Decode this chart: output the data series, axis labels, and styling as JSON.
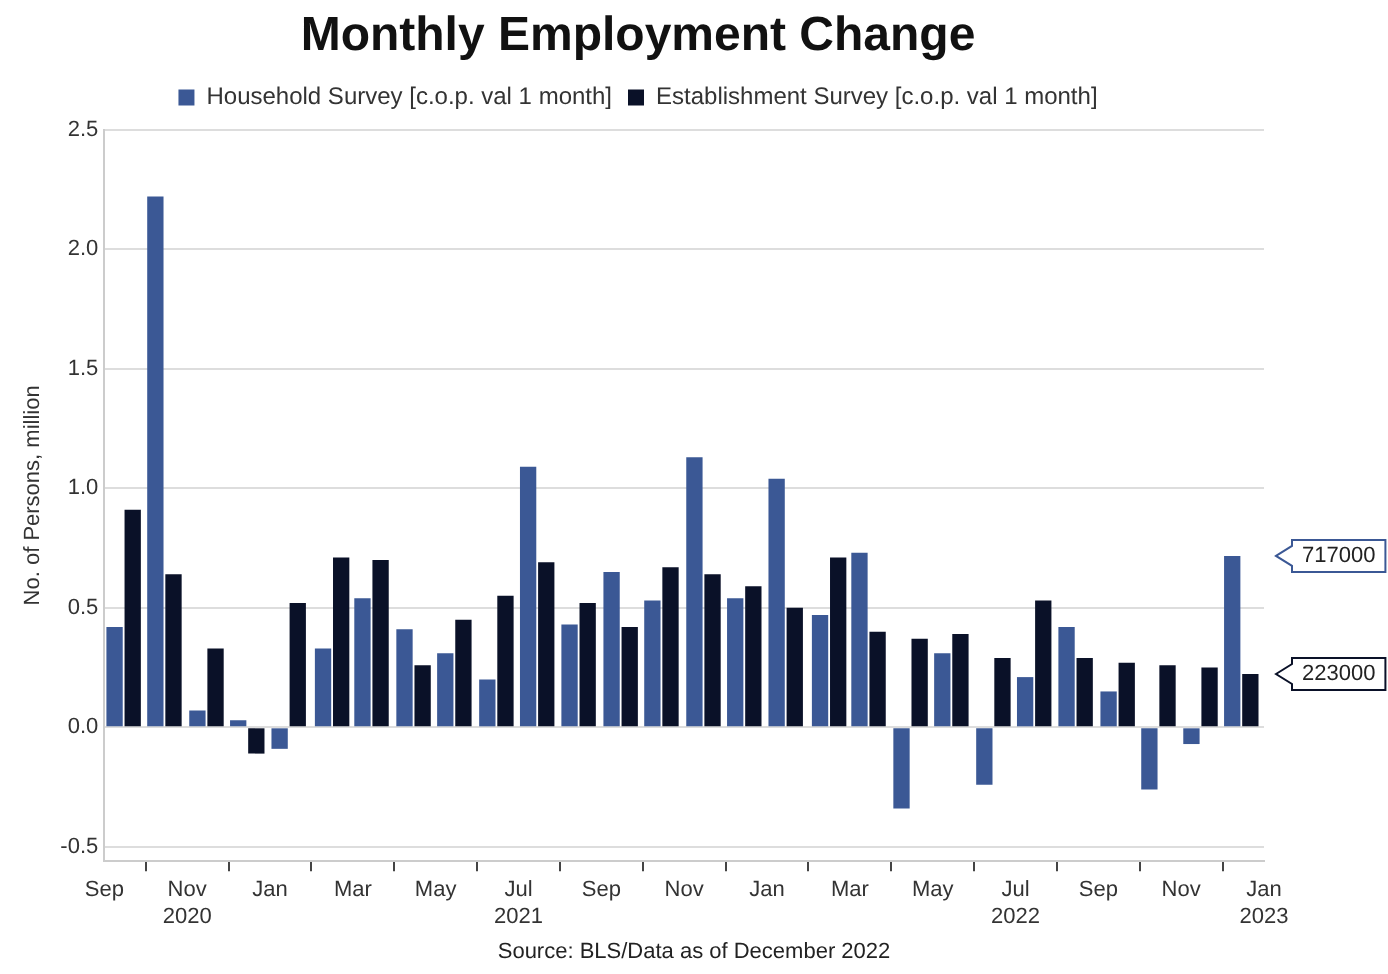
{
  "chart_data": {
    "type": "bar",
    "title": "Monthly Employment Change",
    "ylabel": "No. of Persons, million",
    "annotations": [
      "Source: BLS/Data as of December 2022",
      {
        "text": "717000",
        "x": "2022-12-15",
        "y": 0.717
      },
      {
        "text": "223000",
        "x": "2022-12-15",
        "y": 0.223
      }
    ],
    "x": [
      "2020-09-15",
      "2020-10-15",
      "2020-11-15",
      "2020-12-15",
      "2021-01-15",
      "2021-02-15",
      "2021-03-15",
      "2021-04-15",
      "2021-05-15",
      "2021-06-15",
      "2021-07-15",
      "2021-08-15",
      "2021-09-15",
      "2021-10-15",
      "2021-11-15",
      "2021-12-15",
      "2022-01-15",
      "2022-02-15",
      "2022-03-15",
      "2022-04-15",
      "2022-05-15",
      "2022-06-15",
      "2022-07-15",
      "2022-08-15",
      "2022-09-15",
      "2022-10-15",
      "2022-11-15",
      "2022-12-15"
    ],
    "series": [
      {
        "name": "Household Survey [c.o.p. val 1 month]",
        "color": "#3b5895",
        "values": [
          0.42,
          2.22,
          0.07,
          0.03,
          -0.09,
          0.33,
          0.54,
          0.41,
          0.31,
          0.2,
          1.09,
          0.43,
          0.65,
          0.53,
          1.13,
          0.54,
          1.04,
          0.47,
          0.73,
          -0.34,
          0.31,
          -0.24,
          0.21,
          0.42,
          0.15,
          -0.26,
          -0.07,
          0.717
        ]
      },
      {
        "name": "Establishment Survey [c.o.p. val 1 month]",
        "color": "#0a1128",
        "values": [
          0.91,
          0.64,
          0.33,
          -0.11,
          0.52,
          0.71,
          0.7,
          0.26,
          0.45,
          0.55,
          0.69,
          0.52,
          0.42,
          0.67,
          0.64,
          0.59,
          0.5,
          0.71,
          0.4,
          0.37,
          0.39,
          0.29,
          0.53,
          0.29,
          0.27,
          0.26,
          0.25,
          0.223
        ]
      }
    ],
    "xlim": [
      "2020-09",
      "2023-01"
    ],
    "xticks": [
      {
        "value": "2020-09",
        "label": "Sep"
      },
      {
        "value": "2020-11",
        "label": "Nov 2020"
      },
      {
        "value": "2021-01",
        "label": "Jan"
      },
      {
        "value": "2021-03",
        "label": "Mar"
      },
      {
        "value": "2021-05",
        "label": "May"
      },
      {
        "value": "2021-07",
        "label": "Jul 2021"
      },
      {
        "value": "2021-09",
        "label": "Sep"
      },
      {
        "value": "2021-11",
        "label": "Nov"
      },
      {
        "value": "2022-01",
        "label": "Jan"
      },
      {
        "value": "2022-03",
        "label": "Mar"
      },
      {
        "value": "2022-05",
        "label": "May"
      },
      {
        "value": "2022-07",
        "label": "Jul 2022"
      },
      {
        "value": "2022-09",
        "label": "Sep"
      },
      {
        "value": "2022-11",
        "label": "Nov"
      },
      {
        "value": "2023-01",
        "label": "Jan 2023"
      }
    ],
    "ylim": [
      -0.56,
      2.5
    ],
    "yticks": [
      -0.5,
      {
        "value": 0,
        "label": "0.0"
      },
      0.5,
      {
        "value": 1,
        "label": "1.0"
      },
      1.5,
      {
        "value": 2,
        "label": "2.0"
      },
      2.5
    ],
    "grid": "y",
    "legend": "top"
  }
}
